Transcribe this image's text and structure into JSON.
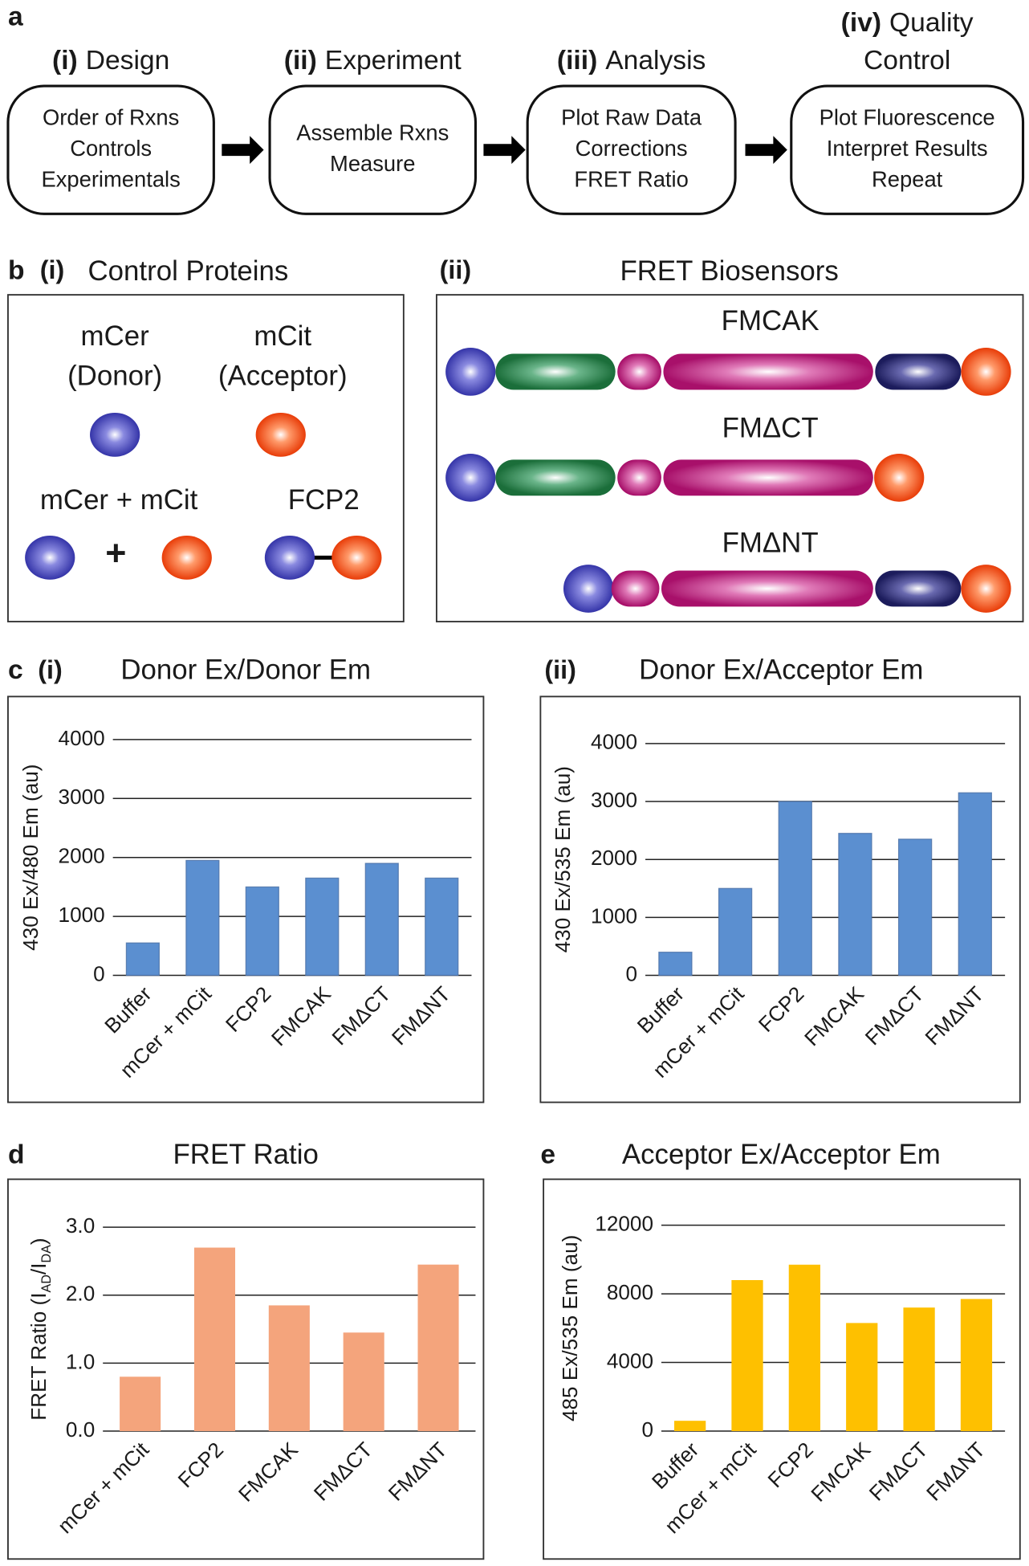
{
  "panel_a": {
    "label": "a",
    "steps": [
      {
        "label": "(i)",
        "title_lines": [
          "Design"
        ],
        "lines": [
          "Order of Rxns",
          "Controls",
          "Experimentals"
        ]
      },
      {
        "label": "(ii)",
        "title_lines": [
          "Experiment"
        ],
        "lines": [
          "Assemble Rxns",
          "Measure"
        ]
      },
      {
        "label": "(iii)",
        "title_lines": [
          "Analysis"
        ],
        "lines": [
          "Plot Raw Data",
          "Corrections",
          "FRET Ratio"
        ]
      },
      {
        "label": "(iv)",
        "title_lines": [
          "Quality",
          "Control"
        ],
        "lines": [
          "Plot Fluorescence",
          "Interpret Results",
          "Repeat"
        ]
      }
    ]
  },
  "panel_b": {
    "label": "b",
    "controls": {
      "label": "(i)",
      "title": "Control Proteins",
      "donor": [
        "mCer",
        "(Donor)"
      ],
      "acceptor": [
        "mCit",
        "(Acceptor)"
      ],
      "mixture": "mCer + mCit",
      "plus": "+",
      "fusion": "FCP2"
    },
    "biosensors": {
      "label": "(ii)",
      "title": "FRET Biosensors",
      "names": [
        "FMCAK",
        "FMΔCT",
        "FMΔNT"
      ]
    }
  },
  "chart_data": [
    {
      "type": "bar",
      "panel": "c",
      "subpanel": "(i)",
      "title": "Donor Ex/Donor Em",
      "ylabel": [
        "430 Ex/480 Em (au)"
      ],
      "categories": [
        "Buffer",
        "mCer + mCit",
        "FCP2",
        "FMCAK",
        "FMΔCT",
        "FMΔNT"
      ],
      "values": [
        550,
        1950,
        1500,
        1650,
        1900,
        1650
      ],
      "color": "#5b8fd0",
      "ylim": [
        0,
        4000
      ],
      "yticks": [
        0,
        1000,
        2000,
        3000,
        4000
      ],
      "grid": true
    },
    {
      "type": "bar",
      "subpanel": "(ii)",
      "title": "Donor Ex/Acceptor Em",
      "ylabel": [
        "430 Ex/535 Em (au)"
      ],
      "categories": [
        "Buffer",
        "mCer + mCit",
        "FCP2",
        "FMCAK",
        "FMΔCT",
        "FMΔNT"
      ],
      "values": [
        400,
        1500,
        3000,
        2450,
        2350,
        3150
      ],
      "color": "#5b8fd0",
      "ylim": [
        0,
        4000
      ],
      "yticks": [
        0,
        1000,
        2000,
        3000,
        4000
      ],
      "grid": true
    },
    {
      "type": "bar",
      "panel": "d",
      "title": "FRET Ratio",
      "ylabel": [
        "FRET Ratio (I",
        "AD",
        "/I",
        "DA",
        ")"
      ],
      "categories": [
        "mCer + mCit",
        "FCP2",
        "FMCAK",
        "FMΔCT",
        "FMΔNT"
      ],
      "values": [
        0.8,
        2.7,
        1.85,
        1.45,
        2.45
      ],
      "color": "#f4a47c",
      "ylim": [
        0,
        3
      ],
      "yticks": [
        {
          "value": 0,
          "label": "0.0"
        },
        {
          "value": 1,
          "label": "1.0"
        },
        {
          "value": 2,
          "label": "2.0"
        },
        {
          "value": 3,
          "label": "3.0"
        }
      ],
      "grid": true
    },
    {
      "type": "bar",
      "panel": "e",
      "title": "Acceptor Ex/Acceptor Em",
      "ylabel": [
        "485 Ex/535 Em (au)"
      ],
      "categories": [
        "Buffer",
        "mCer + mCit",
        "FCP2",
        "FMCAK",
        "FMΔCT",
        "FMΔNT"
      ],
      "values": [
        600,
        8800,
        9700,
        6300,
        7200,
        7700
      ],
      "color": "#fec000",
      "ylim": [
        0,
        12000
      ],
      "yticks": [
        0,
        4000,
        8000,
        12000
      ],
      "grid": true
    }
  ]
}
